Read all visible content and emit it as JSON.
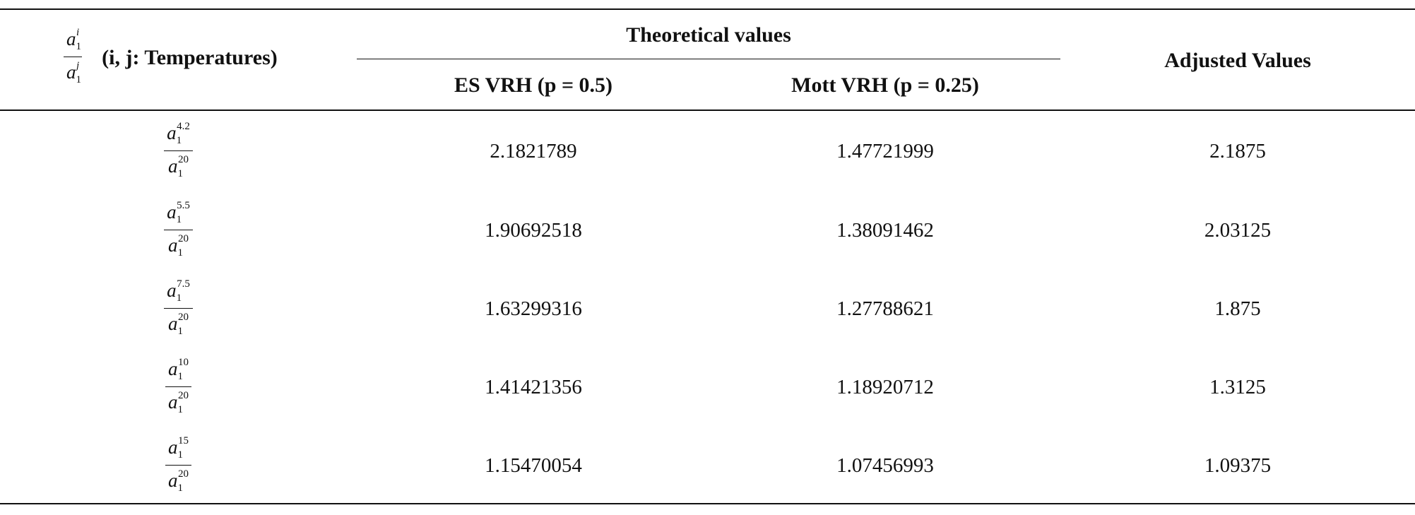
{
  "table": {
    "corner": {
      "num_base": "a",
      "num_sub": "1",
      "num_sup": "i",
      "den_base": "a",
      "den_sub": "1",
      "den_sup": "j",
      "label": "(i, j: Temperatures)"
    },
    "headers": {
      "group": "Theoretical values",
      "es": "ES VRH (p = 0.5)",
      "mott": "Mott VRH (p = 0.25)",
      "adjusted": "Adjusted Values"
    },
    "rows": [
      {
        "num_sup": "4.2",
        "den_sup": "20",
        "es": "2.1821789",
        "mott": "1.47721999",
        "adjusted": "2.1875"
      },
      {
        "num_sup": "5.5",
        "den_sup": "20",
        "es": "1.90692518",
        "mott": "1.38091462",
        "adjusted": "2.03125"
      },
      {
        "num_sup": "7.5",
        "den_sup": "20",
        "es": "1.63299316",
        "mott": "1.27788621",
        "adjusted": "1.875"
      },
      {
        "num_sup": "10",
        "den_sup": "20",
        "es": "1.41421356",
        "mott": "1.18920712",
        "adjusted": "1.3125"
      },
      {
        "num_sup": "15",
        "den_sup": "20",
        "es": "1.15470054",
        "mott": "1.07456993",
        "adjusted": "1.09375"
      }
    ],
    "row_base": "a",
    "row_sub": "1"
  }
}
